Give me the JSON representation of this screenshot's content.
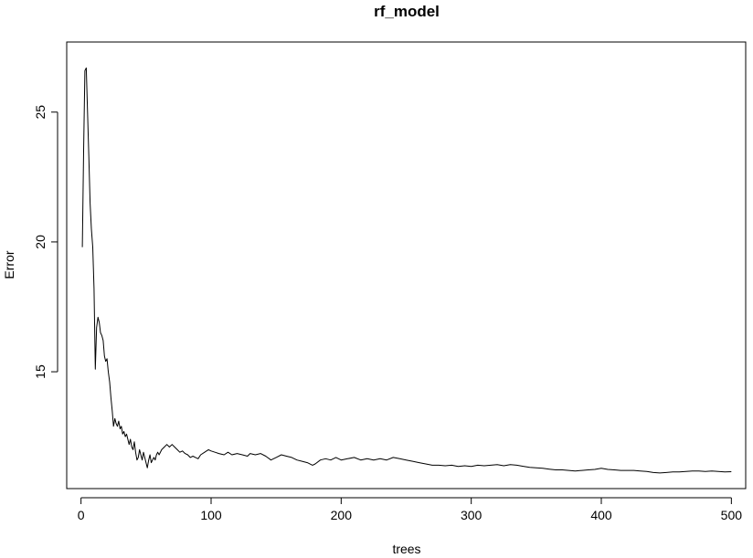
{
  "chart_data": {
    "type": "line",
    "title": "rf_model",
    "xlabel": "trees",
    "ylabel": "Error",
    "xlim": [
      -11,
      511
    ],
    "ylim": [
      10.5,
      27.7
    ],
    "x_ticks": [
      0,
      100,
      200,
      300,
      400,
      500
    ],
    "y_ticks": [
      15,
      20,
      25
    ],
    "grid": false,
    "legend": "none",
    "series": [
      {
        "color": "#000000",
        "points": [
          [
            1,
            19.8
          ],
          [
            2,
            23.5
          ],
          [
            3,
            26.6
          ],
          [
            4,
            26.7
          ],
          [
            5,
            25.0
          ],
          [
            6,
            23.3
          ],
          [
            7,
            21.5
          ],
          [
            8,
            20.5
          ],
          [
            9,
            19.8
          ],
          [
            10,
            18.2
          ],
          [
            11,
            15.1
          ],
          [
            12,
            16.7
          ],
          [
            13,
            17.1
          ],
          [
            14,
            16.9
          ],
          [
            15,
            16.5
          ],
          [
            16,
            16.4
          ],
          [
            17,
            16.2
          ],
          [
            18,
            15.6
          ],
          [
            19,
            15.4
          ],
          [
            20,
            15.5
          ],
          [
            21,
            15.0
          ],
          [
            22,
            14.6
          ],
          [
            23,
            14.0
          ],
          [
            24,
            13.5
          ],
          [
            25,
            12.9
          ],
          [
            26,
            13.2
          ],
          [
            27,
            13.0
          ],
          [
            28,
            12.9
          ],
          [
            29,
            13.1
          ],
          [
            30,
            12.8
          ],
          [
            31,
            12.9
          ],
          [
            32,
            12.6
          ],
          [
            33,
            12.7
          ],
          [
            34,
            12.5
          ],
          [
            35,
            12.6
          ],
          [
            36,
            12.4
          ],
          [
            37,
            12.2
          ],
          [
            38,
            12.4
          ],
          [
            39,
            12.1
          ],
          [
            40,
            12.0
          ],
          [
            41,
            12.3
          ],
          [
            42,
            11.9
          ],
          [
            43,
            11.6
          ],
          [
            44,
            11.7
          ],
          [
            45,
            12.0
          ],
          [
            46,
            11.8
          ],
          [
            47,
            11.6
          ],
          [
            48,
            11.9
          ],
          [
            49,
            11.7
          ],
          [
            50,
            11.5
          ],
          [
            51,
            11.3
          ],
          [
            52,
            11.6
          ],
          [
            53,
            11.8
          ],
          [
            54,
            11.5
          ],
          [
            55,
            11.6
          ],
          [
            56,
            11.7
          ],
          [
            57,
            11.6
          ],
          [
            58,
            11.8
          ],
          [
            59,
            11.9
          ],
          [
            60,
            11.8
          ],
          [
            62,
            12.0
          ],
          [
            64,
            12.1
          ],
          [
            66,
            12.2
          ],
          [
            68,
            12.1
          ],
          [
            70,
            12.2
          ],
          [
            72,
            12.1
          ],
          [
            74,
            12.0
          ],
          [
            76,
            11.9
          ],
          [
            78,
            11.95
          ],
          [
            80,
            11.85
          ],
          [
            82,
            11.8
          ],
          [
            84,
            11.7
          ],
          [
            86,
            11.75
          ],
          [
            88,
            11.7
          ],
          [
            90,
            11.65
          ],
          [
            92,
            11.8
          ],
          [
            95,
            11.9
          ],
          [
            98,
            12.0
          ],
          [
            100,
            11.95
          ],
          [
            103,
            11.9
          ],
          [
            106,
            11.85
          ],
          [
            110,
            11.8
          ],
          [
            113,
            11.9
          ],
          [
            116,
            11.8
          ],
          [
            120,
            11.85
          ],
          [
            124,
            11.8
          ],
          [
            128,
            11.75
          ],
          [
            130,
            11.85
          ],
          [
            134,
            11.8
          ],
          [
            138,
            11.85
          ],
          [
            142,
            11.75
          ],
          [
            146,
            11.6
          ],
          [
            150,
            11.7
          ],
          [
            154,
            11.8
          ],
          [
            158,
            11.75
          ],
          [
            162,
            11.7
          ],
          [
            166,
            11.6
          ],
          [
            170,
            11.55
          ],
          [
            174,
            11.5
          ],
          [
            178,
            11.4
          ],
          [
            180,
            11.45
          ],
          [
            184,
            11.6
          ],
          [
            188,
            11.65
          ],
          [
            192,
            11.6
          ],
          [
            196,
            11.7
          ],
          [
            200,
            11.6
          ],
          [
            205,
            11.65
          ],
          [
            210,
            11.7
          ],
          [
            215,
            11.6
          ],
          [
            220,
            11.65
          ],
          [
            225,
            11.6
          ],
          [
            230,
            11.65
          ],
          [
            235,
            11.6
          ],
          [
            240,
            11.7
          ],
          [
            245,
            11.65
          ],
          [
            250,
            11.6
          ],
          [
            255,
            11.55
          ],
          [
            260,
            11.5
          ],
          [
            265,
            11.45
          ],
          [
            270,
            11.4
          ],
          [
            275,
            11.4
          ],
          [
            280,
            11.38
          ],
          [
            285,
            11.4
          ],
          [
            290,
            11.35
          ],
          [
            295,
            11.38
          ],
          [
            300,
            11.35
          ],
          [
            305,
            11.4
          ],
          [
            310,
            11.38
          ],
          [
            315,
            11.4
          ],
          [
            320,
            11.42
          ],
          [
            325,
            11.38
          ],
          [
            330,
            11.42
          ],
          [
            335,
            11.4
          ],
          [
            340,
            11.36
          ],
          [
            345,
            11.32
          ],
          [
            350,
            11.3
          ],
          [
            355,
            11.28
          ],
          [
            360,
            11.25
          ],
          [
            365,
            11.22
          ],
          [
            370,
            11.22
          ],
          [
            375,
            11.2
          ],
          [
            380,
            11.18
          ],
          [
            385,
            11.2
          ],
          [
            390,
            11.22
          ],
          [
            395,
            11.24
          ],
          [
            400,
            11.28
          ],
          [
            405,
            11.24
          ],
          [
            410,
            11.22
          ],
          [
            415,
            11.2
          ],
          [
            420,
            11.2
          ],
          [
            425,
            11.2
          ],
          [
            430,
            11.18
          ],
          [
            435,
            11.16
          ],
          [
            440,
            11.12
          ],
          [
            445,
            11.1
          ],
          [
            450,
            11.12
          ],
          [
            455,
            11.14
          ],
          [
            460,
            11.14
          ],
          [
            465,
            11.16
          ],
          [
            470,
            11.18
          ],
          [
            475,
            11.18
          ],
          [
            480,
            11.16
          ],
          [
            485,
            11.18
          ],
          [
            490,
            11.16
          ],
          [
            495,
            11.14
          ],
          [
            500,
            11.15
          ]
        ]
      }
    ]
  }
}
